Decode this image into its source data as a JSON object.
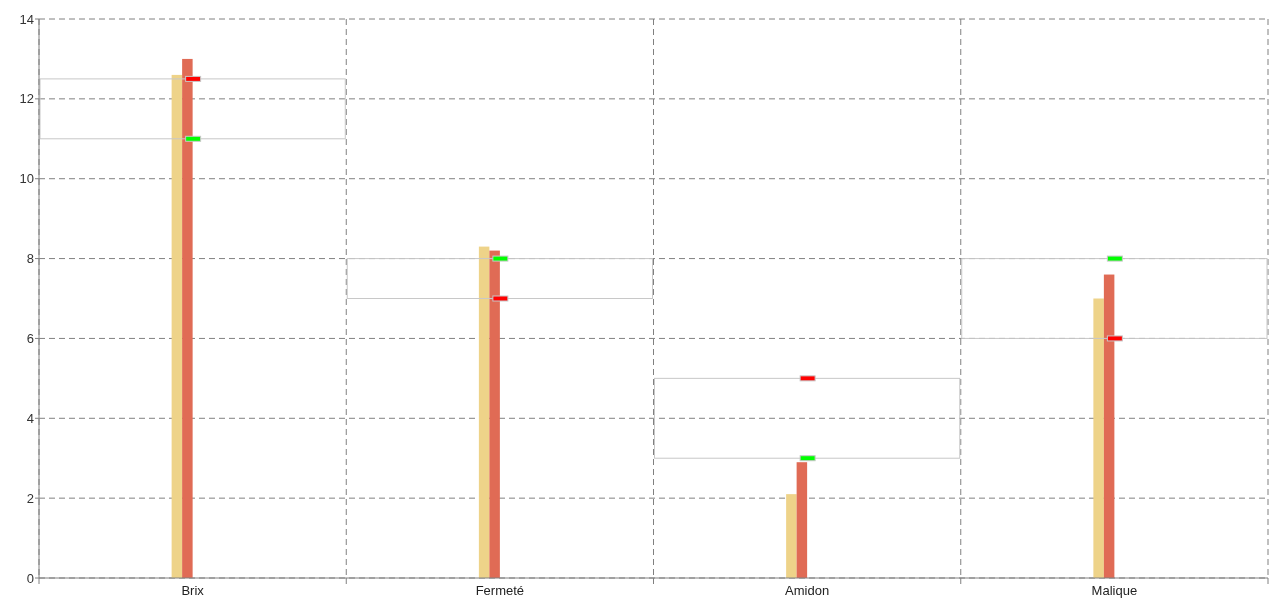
{
  "chart_data": {
    "type": "bar",
    "categories": [
      "Brix",
      "Fermeté",
      "Amidon",
      "Malique"
    ],
    "series": [
      {
        "color": "#eed389",
        "values": [
          12.6,
          8.3,
          2.1,
          7.0
        ]
      },
      {
        "color": "#e06b55",
        "values": [
          13.0,
          8.2,
          2.9,
          7.6
        ]
      },
      {
        "color": "#c8c8c8",
        "base": [
          11,
          7,
          3,
          6
        ],
        "values": [
          1.5,
          1,
          2,
          2
        ]
      },
      {
        "type": "scatter",
        "color": "#00ff00",
        "values": [
          11,
          8,
          3,
          8
        ]
      },
      {
        "type": "scatter",
        "color": "#ff0000",
        "values": [
          12.5,
          7,
          5,
          6
        ]
      }
    ],
    "ylim": [
      0,
      14
    ],
    "yticks": [
      0,
      2,
      4,
      6,
      8,
      10,
      12,
      14
    ],
    "grid": true
  }
}
